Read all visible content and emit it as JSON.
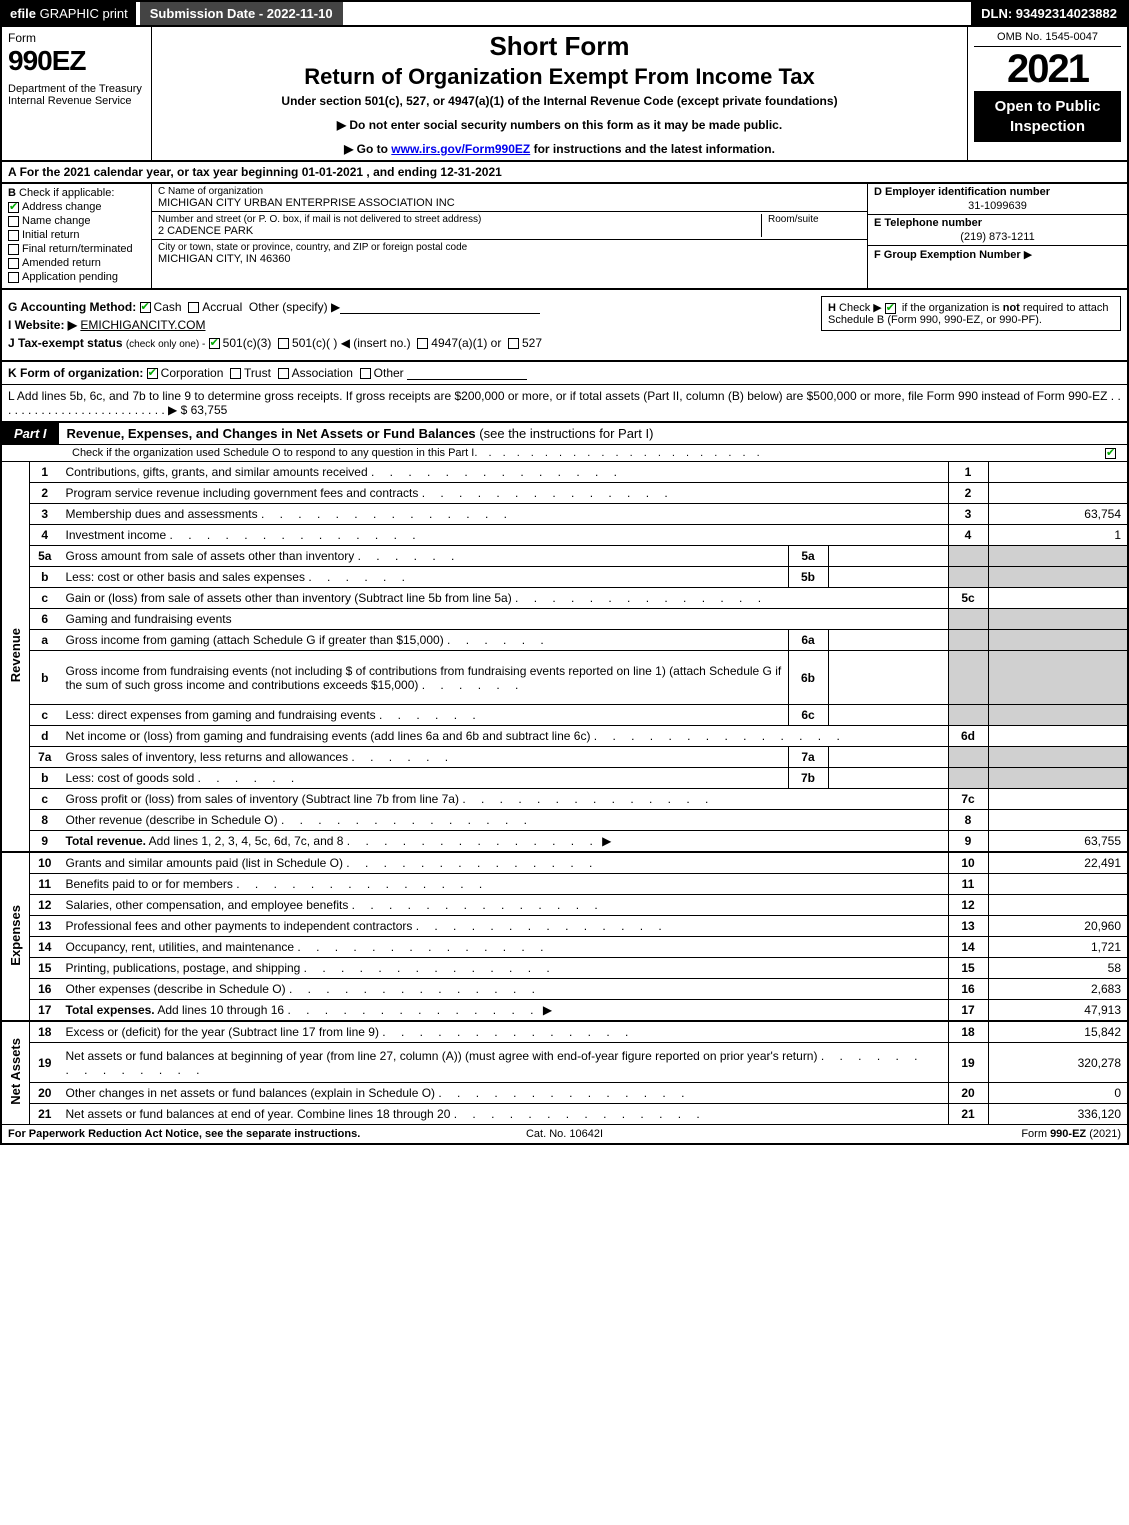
{
  "topbar": {
    "efile_bold": "efile",
    "efile_rest": " GRAPHIC print",
    "submission_label": "Submission Date - 2022-11-10",
    "dln": "DLN: 93492314023882"
  },
  "header": {
    "form_word": "Form",
    "form_number": "990EZ",
    "dept": "Department of the Treasury\nInternal Revenue Service",
    "short_form": "Short Form",
    "return_title": "Return of Organization Exempt From Income Tax",
    "under_section": "Under section 501(c), 527, or 4947(a)(1) of the Internal Revenue Code (except private foundations)",
    "bullet1_prefix": "▶ Do not enter social security numbers on this form as it may be made public.",
    "bullet2_prefix": "▶ Go to ",
    "bullet2_link": "www.irs.gov/Form990EZ",
    "bullet2_suffix": " for instructions and the latest information.",
    "omb": "OMB No. 1545-0047",
    "tax_year": "2021",
    "open_public": "Open to Public Inspection"
  },
  "rowA": {
    "label": "A",
    "text": "For the 2021 calendar year, or tax year beginning 01-01-2021 , and ending 12-31-2021"
  },
  "colB": {
    "label": "B",
    "check_if": "Check if applicable:",
    "items": [
      {
        "label": "Address change",
        "checked": true
      },
      {
        "label": "Name change",
        "checked": false
      },
      {
        "label": "Initial return",
        "checked": false
      },
      {
        "label": "Final return/terminated",
        "checked": false
      },
      {
        "label": "Amended return",
        "checked": false
      },
      {
        "label": "Application pending",
        "checked": false
      }
    ]
  },
  "colC": {
    "name_label": "C Name of organization",
    "name": "MICHIGAN CITY URBAN ENTERPRISE ASSOCIATION INC",
    "street_label": "Number and street (or P. O. box, if mail is not delivered to street address)",
    "room_label": "Room/suite",
    "street": "2 CADENCE PARK",
    "city_label": "City or town, state or province, country, and ZIP or foreign postal code",
    "city": "MICHIGAN CITY, IN  46360"
  },
  "colDE": {
    "d_label": "D Employer identification number",
    "ein": "31-1099639",
    "e_label": "E Telephone number",
    "phone": "(219) 873-1211",
    "f_label": "F Group Exemption Number",
    "f_arrow": "▶"
  },
  "gij": {
    "g_label": "G Accounting Method:",
    "g_cash": "Cash",
    "g_accrual": "Accrual",
    "g_other": "Other (specify) ▶",
    "i_label": "I Website: ▶",
    "i_value": "EMICHIGANCITY.COM",
    "j_label": "J Tax-exempt status",
    "j_sub": "(check only one) -",
    "j_opt1": "501(c)(3)",
    "j_opt2": "501(c)(  ) ◀ (insert no.)",
    "j_opt3": "4947(a)(1) or",
    "j_opt4": "527"
  },
  "hbox": {
    "h_label": "H",
    "text1": "Check ▶",
    "text2": "if the organization is ",
    "not": "not",
    "text3": " required to attach Schedule B (Form 990, 990-EZ, or 990-PF)."
  },
  "rowK": {
    "label": "K Form of organization:",
    "opts": [
      "Corporation",
      "Trust",
      "Association",
      "Other"
    ],
    "checked_index": 0
  },
  "rowL": {
    "text": "L Add lines 5b, 6c, and 7b to line 9 to determine gross receipts. If gross receipts are $200,000 or more, or if total assets (Part II, column (B) below) are $500,000 or more, file Form 990 instead of Form 990-EZ",
    "arrow": "▶",
    "amount": "$ 63,755"
  },
  "part1": {
    "tag": "Part I",
    "title": "Revenue, Expenses, and Changes in Net Assets or Fund Balances",
    "title_suffix": "(see the instructions for Part I)",
    "subline": "Check if the organization used Schedule O to respond to any question in this Part I",
    "sub_checked": true
  },
  "sections": {
    "revenue_label": "Revenue",
    "expenses_label": "Expenses",
    "netassets_label": "Net Assets"
  },
  "lines": [
    {
      "n": "1",
      "desc": "Contributions, gifts, grants, and similar amounts received",
      "num": "1",
      "amt": ""
    },
    {
      "n": "2",
      "desc": "Program service revenue including government fees and contracts",
      "num": "2",
      "amt": ""
    },
    {
      "n": "3",
      "desc": "Membership dues and assessments",
      "num": "3",
      "amt": "63,754"
    },
    {
      "n": "4",
      "desc": "Investment income",
      "num": "4",
      "amt": "1"
    },
    {
      "n": "5a",
      "desc": "Gross amount from sale of assets other than inventory",
      "sub": "5a",
      "subval": "",
      "shaded": true
    },
    {
      "n": "b",
      "desc": "Less: cost or other basis and sales expenses",
      "sub": "5b",
      "subval": "",
      "shaded": true
    },
    {
      "n": "c",
      "desc": "Gain or (loss) from sale of assets other than inventory (Subtract line 5b from line 5a)",
      "num": "5c",
      "amt": ""
    },
    {
      "n": "6",
      "desc": "Gaming and fundraising events",
      "shaded": true,
      "noamt": true
    },
    {
      "n": "a",
      "desc": "Gross income from gaming (attach Schedule G if greater than $15,000)",
      "sub": "6a",
      "subval": "",
      "shaded": true
    },
    {
      "n": "b",
      "desc": "Gross income from fundraising events (not including $                    of contributions from fundraising events reported on line 1) (attach Schedule G if the sum of such gross income and contributions exceeds $15,000)",
      "sub": "6b",
      "subval": "",
      "shaded": true,
      "tall": true
    },
    {
      "n": "c",
      "desc": "Less: direct expenses from gaming and fundraising events",
      "sub": "6c",
      "subval": "",
      "shaded": true
    },
    {
      "n": "d",
      "desc": "Net income or (loss) from gaming and fundraising events (add lines 6a and 6b and subtract line 6c)",
      "num": "6d",
      "amt": ""
    },
    {
      "n": "7a",
      "desc": "Gross sales of inventory, less returns and allowances",
      "sub": "7a",
      "subval": "",
      "shaded": true
    },
    {
      "n": "b",
      "desc": "Less: cost of goods sold",
      "sub": "7b",
      "subval": "",
      "shaded": true
    },
    {
      "n": "c",
      "desc": "Gross profit or (loss) from sales of inventory (Subtract line 7b from line 7a)",
      "num": "7c",
      "amt": ""
    },
    {
      "n": "8",
      "desc": "Other revenue (describe in Schedule O)",
      "num": "8",
      "amt": ""
    },
    {
      "n": "9",
      "desc": "Total revenue. Add lines 1, 2, 3, 4, 5c, 6d, 7c, and 8",
      "num": "9",
      "amt": "63,755",
      "bold": true,
      "arrow": true
    }
  ],
  "exp_lines": [
    {
      "n": "10",
      "desc": "Grants and similar amounts paid (list in Schedule O)",
      "num": "10",
      "amt": "22,491"
    },
    {
      "n": "11",
      "desc": "Benefits paid to or for members",
      "num": "11",
      "amt": ""
    },
    {
      "n": "12",
      "desc": "Salaries, other compensation, and employee benefits",
      "num": "12",
      "amt": ""
    },
    {
      "n": "13",
      "desc": "Professional fees and other payments to independent contractors",
      "num": "13",
      "amt": "20,960"
    },
    {
      "n": "14",
      "desc": "Occupancy, rent, utilities, and maintenance",
      "num": "14",
      "amt": "1,721"
    },
    {
      "n": "15",
      "desc": "Printing, publications, postage, and shipping",
      "num": "15",
      "amt": "58"
    },
    {
      "n": "16",
      "desc": "Other expenses (describe in Schedule O)",
      "num": "16",
      "amt": "2,683"
    },
    {
      "n": "17",
      "desc": "Total expenses. Add lines 10 through 16",
      "num": "17",
      "amt": "47,913",
      "bold": true,
      "arrow": true
    }
  ],
  "na_lines": [
    {
      "n": "18",
      "desc": "Excess or (deficit) for the year (Subtract line 17 from line 9)",
      "num": "18",
      "amt": "15,842"
    },
    {
      "n": "19",
      "desc": "Net assets or fund balances at beginning of year (from line 27, column (A)) (must agree with end-of-year figure reported on prior year's return)",
      "num": "19",
      "amt": "320,278",
      "tall": true
    },
    {
      "n": "20",
      "desc": "Other changes in net assets or fund balances (explain in Schedule O)",
      "num": "20",
      "amt": "0"
    },
    {
      "n": "21",
      "desc": "Net assets or fund balances at end of year. Combine lines 18 through 20",
      "num": "21",
      "amt": "336,120"
    }
  ],
  "footer": {
    "left": "For Paperwork Reduction Act Notice, see the separate instructions.",
    "mid": "Cat. No. 10642I",
    "right_prefix": "Form ",
    "right_form": "990-EZ",
    "right_suffix": " (2021)"
  },
  "colors": {
    "black": "#000000",
    "shade": "#d0d0d0",
    "checkgreen": "#00a000"
  }
}
